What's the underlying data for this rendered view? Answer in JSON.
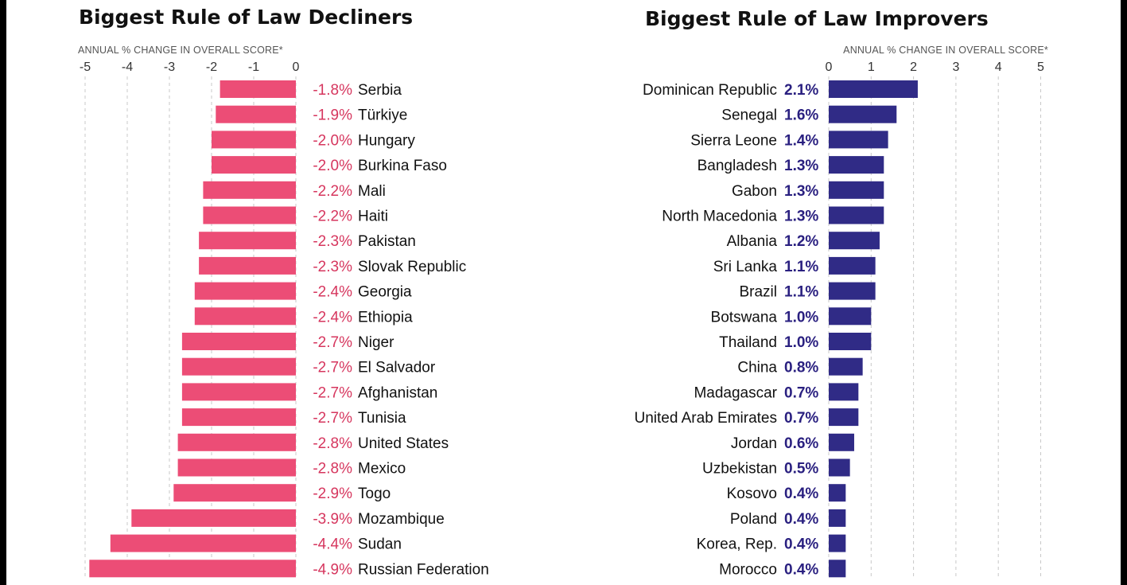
{
  "colors": {
    "decliner": "#ec4d76",
    "improver": "#302b86",
    "decliner_text": "#d6365e",
    "improver_text": "#2a2080"
  },
  "chart_data": [
    {
      "type": "bar",
      "title": "Biggest Rule of Law Decliners",
      "axis_label": "ANNUAL % CHANGE IN OVERALL SCORE*",
      "xlim": [
        -5,
        0
      ],
      "ticks": [
        "-5",
        "-4",
        "-3",
        "-2",
        "-1",
        "0"
      ],
      "categories": [
        "Serbia",
        "Türkiye",
        "Hungary",
        "Burkina Faso",
        "Mali",
        "Haiti",
        "Pakistan",
        "Slovak Republic",
        "Georgia",
        "Ethiopia",
        "Niger",
        "El Salvador",
        "Afghanistan",
        "Tunisia",
        "United States",
        "Mexico",
        "Togo",
        "Mozambique",
        "Sudan",
        "Russian Federation"
      ],
      "values": [
        -1.8,
        -1.9,
        -2.0,
        -2.0,
        -2.2,
        -2.2,
        -2.3,
        -2.3,
        -2.4,
        -2.4,
        -2.7,
        -2.7,
        -2.7,
        -2.7,
        -2.8,
        -2.8,
        -2.9,
        -3.9,
        -4.4,
        -4.9
      ],
      "labels": [
        "-1.8%",
        "-1.9%",
        "-2.0%",
        "-2.0%",
        "-2.2%",
        "-2.2%",
        "-2.3%",
        "-2.3%",
        "-2.4%",
        "-2.4%",
        "-2.7%",
        "-2.7%",
        "-2.7%",
        "-2.7%",
        "-2.8%",
        "-2.8%",
        "-2.9%",
        "-3.9%",
        "-4.4%",
        "-4.9%"
      ]
    },
    {
      "type": "bar",
      "title": "Biggest Rule of Law Improvers",
      "axis_label": "ANNUAL % CHANGE IN OVERALL SCORE*",
      "xlim": [
        0,
        5
      ],
      "ticks": [
        "0",
        "1",
        "2",
        "3",
        "4",
        "5"
      ],
      "categories": [
        "Dominican Republic",
        "Senegal",
        "Sierra Leone",
        "Bangladesh",
        "Gabon",
        "North Macedonia",
        "Albania",
        "Sri Lanka",
        "Brazil",
        "Botswana",
        "Thailand",
        "China",
        "Madagascar",
        "United Arab Emirates",
        "Jordan",
        "Uzbekistan",
        "Kosovo",
        "Poland",
        "Korea, Rep.",
        "Morocco"
      ],
      "values": [
        2.1,
        1.6,
        1.4,
        1.3,
        1.3,
        1.3,
        1.2,
        1.1,
        1.1,
        1.0,
        1.0,
        0.8,
        0.7,
        0.7,
        0.6,
        0.5,
        0.4,
        0.4,
        0.4,
        0.4
      ],
      "labels": [
        "2.1%",
        "1.6%",
        "1.4%",
        "1.3%",
        "1.3%",
        "1.3%",
        "1.2%",
        "1.1%",
        "1.1%",
        "1.0%",
        "1.0%",
        "0.8%",
        "0.7%",
        "0.7%",
        "0.6%",
        "0.5%",
        "0.4%",
        "0.4%",
        "0.4%",
        "0.4%"
      ]
    }
  ]
}
